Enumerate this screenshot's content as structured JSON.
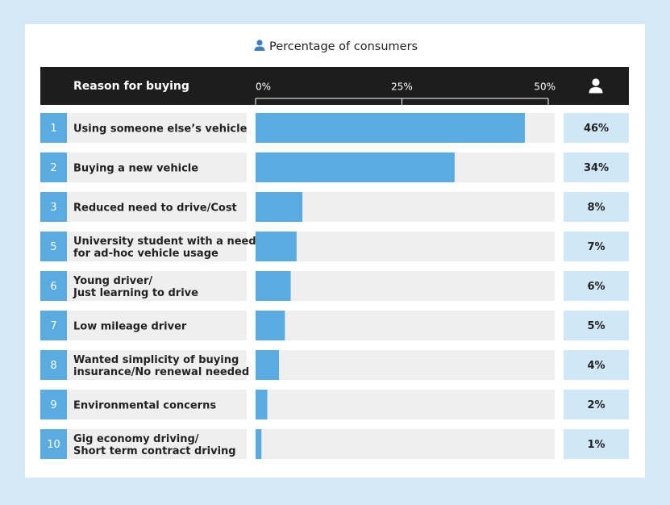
{
  "chart_data": {
    "type": "bar",
    "orientation": "horizontal",
    "title": "Percentage of consumers",
    "category_header": "Reason for buying",
    "ranks": [
      1,
      2,
      3,
      5,
      6,
      7,
      8,
      9,
      10
    ],
    "categories": [
      [
        "Using someone else’s vehicle"
      ],
      [
        "Buying a new vehicle"
      ],
      [
        "Reduced need to drive/Cost"
      ],
      [
        "University student with a need",
        "for ad-hoc vehicle usage"
      ],
      [
        "Young driver/",
        "Just learning to drive"
      ],
      [
        "Low mileage driver"
      ],
      [
        "Wanted simplicity of buying",
        "insurance/No renewal needed"
      ],
      [
        "Environmental concerns"
      ],
      [
        "Gig economy driving/",
        "Short term contract driving"
      ]
    ],
    "values": [
      46,
      34,
      8,
      7,
      6,
      5,
      4,
      2,
      1
    ],
    "value_labels": [
      "46%",
      "34%",
      "8%",
      "7%",
      "6%",
      "5%",
      "4%",
      "2%",
      "1%"
    ],
    "color": "#5aabe0",
    "xlim": [
      0,
      50
    ],
    "xticks": [
      {
        "value": 0,
        "label": "0%"
      },
      {
        "value": 25,
        "label": "25%"
      },
      {
        "value": 50,
        "label": "50%"
      }
    ]
  }
}
